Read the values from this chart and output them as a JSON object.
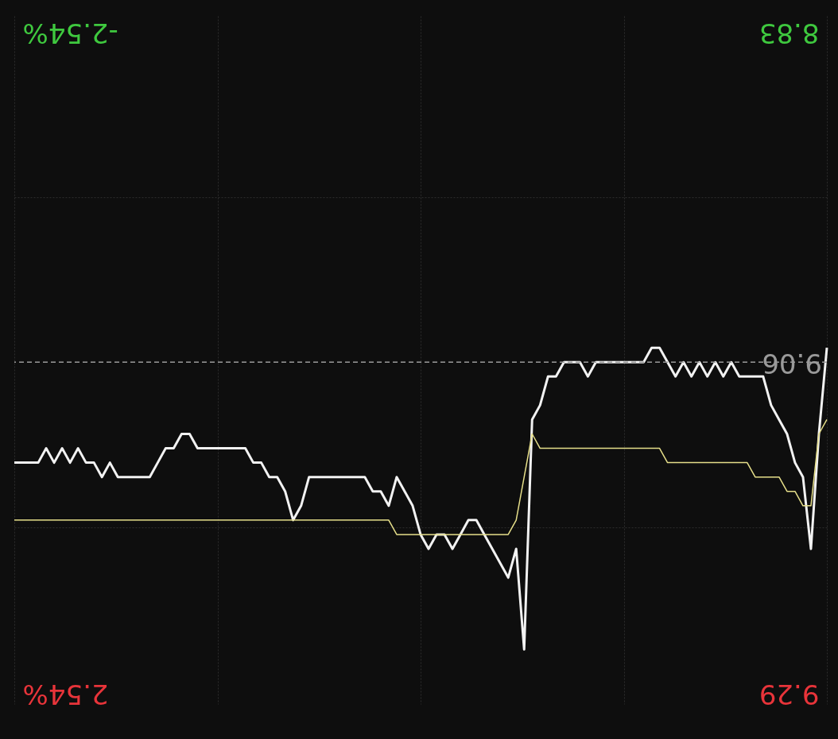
{
  "chart_data": {
    "type": "line",
    "categories": [
      null,
      null,
      null,
      null,
      null,
      null,
      null,
      null,
      null,
      null,
      null,
      null,
      null,
      null,
      null,
      null,
      null,
      null,
      null,
      null,
      null,
      null,
      null,
      null,
      null,
      null,
      null,
      null,
      null,
      null,
      null,
      null,
      null,
      null,
      null,
      null,
      null,
      null,
      null,
      null,
      null,
      null,
      null,
      null,
      null,
      null,
      null,
      null,
      null,
      null,
      null,
      null,
      null,
      null,
      null,
      null,
      null,
      null,
      null,
      null,
      null,
      null,
      null,
      null,
      null,
      null,
      null,
      null,
      null,
      null,
      null,
      null,
      null,
      null,
      null,
      null,
      null,
      null,
      null,
      null,
      null,
      null,
      null,
      null,
      null,
      null,
      null,
      null,
      null,
      null,
      null,
      null,
      null,
      null,
      null,
      null,
      null,
      null,
      null,
      null,
      null,
      null,
      null
    ],
    "series": [
      {
        "color": "#f2f2f2",
        "values": [
          9.13,
          9.13,
          9.13,
          9.13,
          9.12,
          9.13,
          9.12,
          9.13,
          9.12,
          9.13,
          9.13,
          9.14,
          9.13,
          9.14,
          9.14,
          9.14,
          9.14,
          9.14,
          9.13,
          9.12,
          9.12,
          9.11,
          9.11,
          9.12,
          9.12,
          9.12,
          9.12,
          9.12,
          9.12,
          9.12,
          9.13,
          9.13,
          9.14,
          9.14,
          9.15,
          9.17,
          9.16,
          9.14,
          9.14,
          9.14,
          9.14,
          9.14,
          9.14,
          9.14,
          9.14,
          9.15,
          9.15,
          9.16,
          9.14,
          9.15,
          9.16,
          9.18,
          9.19,
          9.18,
          9.18,
          9.19,
          9.18,
          9.17,
          9.17,
          9.18,
          9.19,
          9.2,
          9.21,
          9.19,
          9.26,
          9.1,
          9.09,
          9.07,
          9.07,
          9.06,
          9.06,
          9.06,
          9.07,
          9.06,
          9.06,
          9.06,
          9.06,
          9.06,
          9.06,
          9.06,
          9.05,
          9.05,
          9.06,
          9.07,
          9.06,
          9.07,
          9.06,
          9.07,
          9.06,
          9.07,
          9.06,
          9.07,
          9.07,
          9.07,
          9.07,
          9.09,
          9.1,
          9.11,
          9.13,
          9.14,
          9.19,
          9.11,
          9.05
        ]
      },
      {
        "color": "#e6df8a",
        "values": [
          9.17,
          9.17,
          9.17,
          9.17,
          9.17,
          9.17,
          9.17,
          9.17,
          9.17,
          9.17,
          9.17,
          9.17,
          9.17,
          9.17,
          9.17,
          9.17,
          9.17,
          9.17,
          9.17,
          9.17,
          9.17,
          9.17,
          9.17,
          9.17,
          9.17,
          9.17,
          9.17,
          9.17,
          9.17,
          9.17,
          9.17,
          9.17,
          9.17,
          9.17,
          9.17,
          9.17,
          9.17,
          9.17,
          9.17,
          9.17,
          9.17,
          9.17,
          9.17,
          9.17,
          9.17,
          9.17,
          9.17,
          9.17,
          9.18,
          9.18,
          9.18,
          9.18,
          9.18,
          9.18,
          9.18,
          9.18,
          9.18,
          9.18,
          9.18,
          9.18,
          9.18,
          9.18,
          9.18,
          9.17,
          9.14,
          9.11,
          9.12,
          9.12,
          9.12,
          9.12,
          9.12,
          9.12,
          9.12,
          9.12,
          9.12,
          9.12,
          9.12,
          9.12,
          9.12,
          9.12,
          9.12,
          9.12,
          9.13,
          9.13,
          9.13,
          9.13,
          9.13,
          9.13,
          9.13,
          9.13,
          9.13,
          9.13,
          9.13,
          9.14,
          9.14,
          9.14,
          9.14,
          9.15,
          9.15,
          9.16,
          9.16,
          9.11,
          9.1
        ]
      }
    ],
    "ylim": [
      9.298,
      8.819
    ],
    "yticks": [
      8.83,
      {
        "value": 8.945,
        "label": null
      },
      {
        "value": 9.175,
        "label": null
      },
      9.29
    ],
    "y2lim": [
      2.63,
      -2.66
    ],
    "y2ticks": [
      {
        "value": -2.54,
        "label": "-2.54%"
      },
      {
        "value": 2.54,
        "label": "2.54%"
      }
    ],
    "ref_lines": [
      {
        "axis": "y",
        "value": 9.06,
        "label": "9.06",
        "color": "#9a9a9a",
        "line_style": "dashed"
      }
    ],
    "grid": true,
    "tick_labels": "y"
  }
}
